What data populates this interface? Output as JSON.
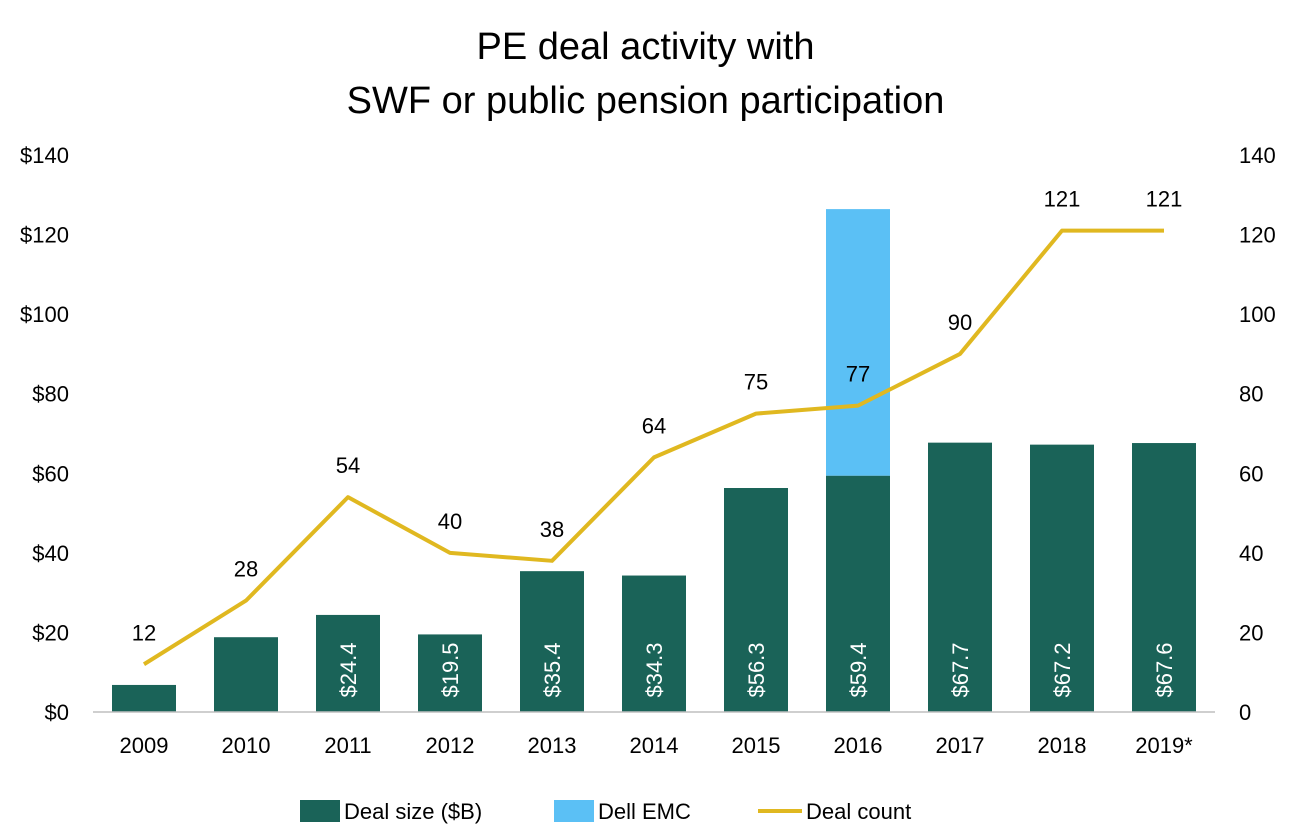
{
  "chart_data": {
    "type": "bar",
    "title": [
      "PE deal activity with",
      "SWF or public pension participation"
    ],
    "categories": [
      "2009",
      "2010",
      "2011",
      "2012",
      "2013",
      "2014",
      "2015",
      "2016",
      "2017",
      "2018",
      "2019*"
    ],
    "series": [
      {
        "name": "Deal size ($B)",
        "kind": "bar",
        "color": "#1a6358",
        "values": [
          6.8,
          18.8,
          24.4,
          19.5,
          35.4,
          34.3,
          56.3,
          59.4,
          67.7,
          67.2,
          67.6
        ],
        "labels": [
          "",
          "",
          "$24.4",
          "$19.5",
          "$35.4",
          "$34.3",
          "$56.3",
          "$59.4",
          "$67.7",
          "$67.2",
          "$67.6"
        ]
      },
      {
        "name": "Dell EMC",
        "kind": "stacked-bar",
        "color": "#5bc0f5",
        "values": [
          0,
          0,
          0,
          0,
          0,
          0,
          0,
          67,
          0,
          0,
          0
        ]
      },
      {
        "name": "Deal count",
        "kind": "line",
        "axis": "right",
        "color": "#e0b820",
        "values": [
          12,
          28,
          54,
          40,
          38,
          64,
          75,
          77,
          90,
          121,
          121
        ]
      }
    ],
    "left_axis": {
      "ticks": [
        "$0",
        "$20",
        "$40",
        "$60",
        "$80",
        "$100",
        "$120",
        "$140"
      ],
      "ylim": [
        0,
        140
      ]
    },
    "right_axis": {
      "ticks": [
        "0",
        "20",
        "40",
        "60",
        "80",
        "100",
        "120",
        "140"
      ],
      "ylim": [
        0,
        140
      ]
    },
    "grid": false,
    "legend_position": "bottom"
  }
}
